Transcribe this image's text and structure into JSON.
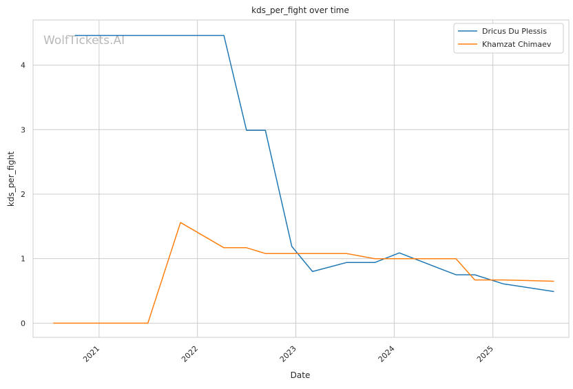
{
  "watermark": "WolfTickets.AI",
  "chart_data": {
    "type": "line",
    "title": "kds_per_fight over time",
    "xlabel": "Date",
    "ylabel": "kds_per_fight",
    "x_type": "date",
    "xlim": [
      "2020-05-01",
      "2025-10-10"
    ],
    "ylim": [
      -0.22,
      4.7
    ],
    "x_ticks": [
      {
        "date": "2021-01-01",
        "label": "2021"
      },
      {
        "date": "2022-01-01",
        "label": "2022"
      },
      {
        "date": "2023-01-01",
        "label": "2023"
      },
      {
        "date": "2024-01-01",
        "label": "2024"
      },
      {
        "date": "2025-01-01",
        "label": "2025"
      }
    ],
    "y_ticks": [
      0,
      1,
      2,
      3,
      4
    ],
    "grid": true,
    "legend_position": "top-right",
    "series": [
      {
        "name": "Dricus Du Plessis",
        "color": "#1f77b4",
        "points": [
          {
            "x": "2020-10-03",
            "y": 4.46
          },
          {
            "x": "2022-04-09",
            "y": 4.46
          },
          {
            "x": "2022-07-02",
            "y": 2.99
          },
          {
            "x": "2022-09-10",
            "y": 2.99
          },
          {
            "x": "2022-12-17",
            "y": 1.19
          },
          {
            "x": "2023-03-04",
            "y": 0.8
          },
          {
            "x": "2023-07-08",
            "y": 0.94
          },
          {
            "x": "2023-10-21",
            "y": 0.94
          },
          {
            "x": "2024-01-20",
            "y": 1.09
          },
          {
            "x": "2024-08-17",
            "y": 0.75
          },
          {
            "x": "2024-10-26",
            "y": 0.75
          },
          {
            "x": "2025-02-08",
            "y": 0.61
          },
          {
            "x": "2025-08-16",
            "y": 0.49
          }
        ]
      },
      {
        "name": "Khamzat Chimaev",
        "color": "#ff7f0e",
        "points": [
          {
            "x": "2020-07-15",
            "y": 0.0
          },
          {
            "x": "2021-07-01",
            "y": 0.0
          },
          {
            "x": "2021-10-30",
            "y": 1.56
          },
          {
            "x": "2022-04-09",
            "y": 1.17
          },
          {
            "x": "2022-07-02",
            "y": 1.17
          },
          {
            "x": "2022-09-10",
            "y": 1.08
          },
          {
            "x": "2023-07-08",
            "y": 1.08
          },
          {
            "x": "2023-10-21",
            "y": 1.0
          },
          {
            "x": "2024-08-17",
            "y": 1.0
          },
          {
            "x": "2024-10-26",
            "y": 0.67
          },
          {
            "x": "2025-02-08",
            "y": 0.67
          },
          {
            "x": "2025-08-16",
            "y": 0.65
          }
        ]
      }
    ]
  }
}
